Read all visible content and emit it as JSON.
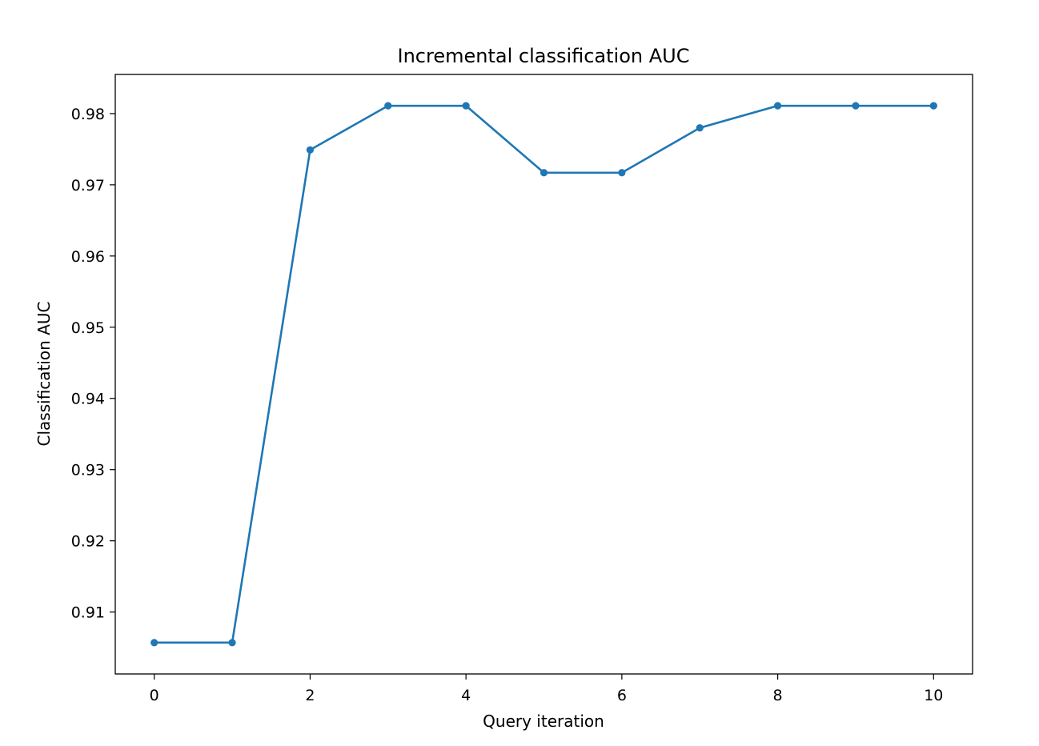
{
  "chart_data": {
    "type": "line",
    "title": "Incremental classification AUC",
    "xlabel": "Query iteration",
    "ylabel": "Classification AUC",
    "xlim": [
      -0.5,
      10.5
    ],
    "ylim": [
      0.9013,
      0.9855
    ],
    "xticks": [
      0,
      2,
      4,
      6,
      8,
      10
    ],
    "xtick_labels": [
      "0",
      "2",
      "4",
      "6",
      "8",
      "10"
    ],
    "yticks": [
      0.91,
      0.92,
      0.93,
      0.94,
      0.95,
      0.96,
      0.97,
      0.98
    ],
    "ytick_labels": [
      "0.91",
      "0.92",
      "0.93",
      "0.94",
      "0.95",
      "0.96",
      "0.97",
      "0.98"
    ],
    "grid": false,
    "series": [
      {
        "color": "#1f77b4",
        "marker": "circle",
        "x": [
          0,
          1,
          2,
          3,
          4,
          5,
          6,
          7,
          8,
          9,
          10
        ],
        "values": [
          0.9057,
          0.9057,
          0.9749,
          0.9811,
          0.9811,
          0.9717,
          0.9717,
          0.978,
          0.9811,
          0.9811,
          0.9811
        ]
      }
    ]
  }
}
